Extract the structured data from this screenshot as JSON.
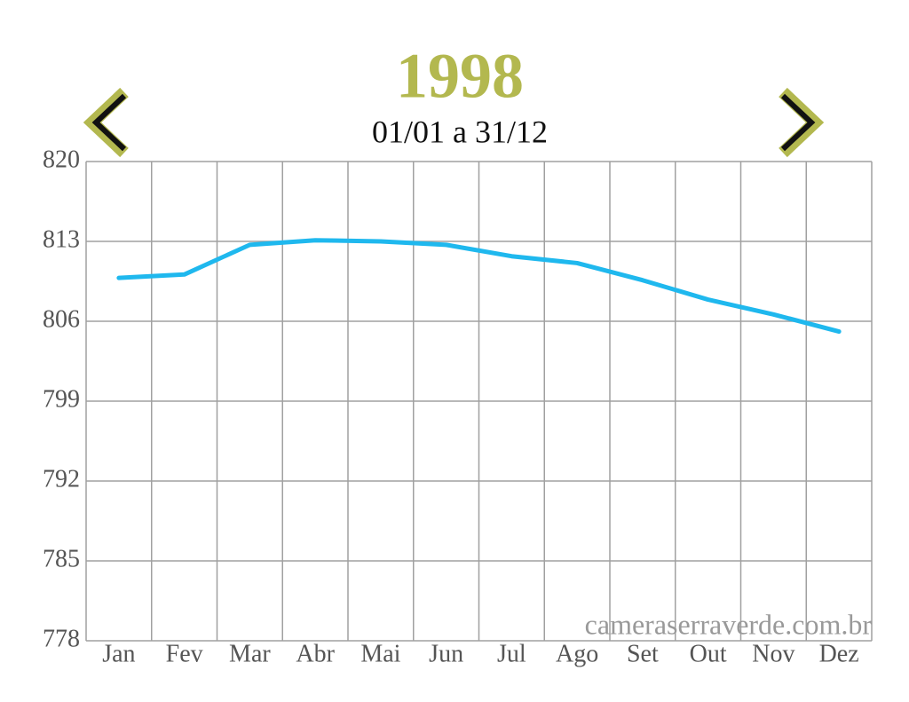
{
  "chart_data": {
    "type": "line",
    "title": "1998",
    "subtitle": "01/01 a 31/12",
    "watermark": "cameraserraverde.com.br",
    "categories": [
      "Jan",
      "Fev",
      "Mar",
      "Abr",
      "Mai",
      "Jun",
      "Jul",
      "Ago",
      "Set",
      "Out",
      "Nov",
      "Dez"
    ],
    "series": [
      {
        "color": "#1fb8ee",
        "values": [
          809.8,
          810.1,
          812.7,
          813.1,
          813.0,
          812.7,
          811.7,
          811.1,
          809.6,
          807.9,
          806.6,
          805.1
        ]
      }
    ],
    "ylim": [
      778,
      820
    ],
    "yticks": [
      778,
      785,
      792,
      799,
      806,
      813,
      820
    ],
    "grid": true
  }
}
